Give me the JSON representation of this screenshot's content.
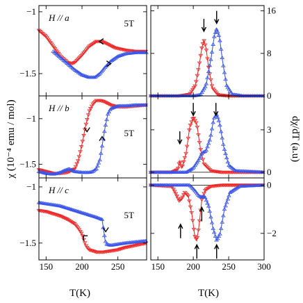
{
  "figure": {
    "left_ylabel": "χ (10⁻⁴ emu / mol)",
    "right_ylabel": "dχ/dT  (a.u)",
    "left_xlabel": "T(K)",
    "right_xlabel": "T(K)"
  },
  "colors": {
    "red": "#ee2a2a",
    "blue": "#3b56e8"
  },
  "chart_data": [
    {
      "type": "line",
      "panel": "chi-a",
      "field_label": "H // a",
      "field_strength": "5T",
      "xlim": [
        140,
        290
      ],
      "ylim": [
        -1.68,
        -0.95
      ],
      "yticks": [
        -1.0,
        -1.5
      ],
      "xticks": [
        150,
        200,
        250
      ],
      "show_xticklabels": false,
      "series": [
        {
          "color": "red",
          "x": [
            140,
            150,
            160,
            170,
            180,
            185,
            190,
            200,
            210,
            220,
            228,
            235,
            245,
            260,
            275,
            290
          ],
          "y": [
            -1.15,
            -1.2,
            -1.28,
            -1.36,
            -1.41,
            -1.42,
            -1.41,
            -1.35,
            -1.28,
            -1.24,
            -1.24,
            -1.26,
            -1.29,
            -1.31,
            -1.32,
            -1.32
          ]
        },
        {
          "color": "blue",
          "x": [
            160,
            170,
            180,
            190,
            200,
            210,
            218,
            225,
            232,
            240,
            250,
            260,
            275,
            290
          ],
          "y": [
            -1.32,
            -1.37,
            -1.42,
            -1.47,
            -1.51,
            -1.53,
            -1.53,
            -1.5,
            -1.45,
            -1.4,
            -1.36,
            -1.34,
            -1.33,
            -1.33
          ]
        }
      ],
      "arrows": [
        {
          "x": 226,
          "y": -1.24,
          "dir": "left"
        },
        {
          "x": 238,
          "y": -1.42,
          "dir": "right"
        }
      ]
    },
    {
      "type": "line",
      "panel": "chi-b",
      "field_label": "H // b",
      "field_strength": "5T",
      "xlim": [
        140,
        290
      ],
      "ylim": [
        -1.65,
        -0.75
      ],
      "yticks": [
        -1.0,
        -1.5
      ],
      "xticks": [
        150,
        200,
        250
      ],
      "show_xticklabels": false,
      "series": [
        {
          "color": "red",
          "x": [
            140,
            150,
            160,
            170,
            180,
            190,
            195,
            200,
            205,
            210,
            215,
            220,
            225,
            230,
            240,
            250,
            260,
            275,
            290
          ],
          "y": [
            -1.56,
            -1.58,
            -1.6,
            -1.6,
            -1.59,
            -1.55,
            -1.45,
            -1.28,
            -1.08,
            -0.92,
            -0.84,
            -0.8,
            -0.8,
            -0.81,
            -0.85,
            -0.87,
            -0.87,
            -0.86,
            -0.85
          ]
        },
        {
          "color": "blue",
          "x": [
            140,
            150,
            160,
            170,
            175,
            182,
            190,
            200,
            210,
            215,
            220,
            225,
            228,
            232,
            236,
            240,
            250,
            260,
            275,
            290
          ],
          "y": [
            -1.58,
            -1.6,
            -1.61,
            -1.59,
            -1.57,
            -1.55,
            -1.58,
            -1.59,
            -1.59,
            -1.58,
            -1.55,
            -1.45,
            -1.3,
            -1.1,
            -0.95,
            -0.89,
            -0.86,
            -0.86,
            -0.85,
            -0.85
          ]
        }
      ],
      "arrows": [
        {
          "x": 207,
          "y": -1.12,
          "dir": "down"
        },
        {
          "x": 228,
          "y": -1.22,
          "dir": "up"
        }
      ]
    },
    {
      "type": "line",
      "panel": "chi-c",
      "field_label": "H // c",
      "field_strength": "5T",
      "xlim": [
        140,
        290
      ],
      "ylim": [
        -1.65,
        -0.92
      ],
      "yticks": [
        -1.0,
        -1.5
      ],
      "xticks": [
        150,
        200,
        250
      ],
      "xticklabels": [
        "150",
        "200",
        "250"
      ],
      "series": [
        {
          "color": "red",
          "x": [
            140,
            150,
            160,
            170,
            180,
            190,
            195,
            200,
            203,
            206,
            210,
            220,
            230,
            240,
            250,
            260,
            275,
            290
          ],
          "y": [
            -1.21,
            -1.22,
            -1.24,
            -1.26,
            -1.29,
            -1.33,
            -1.37,
            -1.42,
            -1.48,
            -1.53,
            -1.56,
            -1.58,
            -1.58,
            -1.57,
            -1.56,
            -1.54,
            -1.52,
            -1.5
          ]
        },
        {
          "color": "blue",
          "x": [
            140,
            150,
            160,
            170,
            180,
            190,
            200,
            210,
            220,
            228,
            230,
            232,
            234,
            240,
            250,
            260,
            275,
            290
          ],
          "y": [
            -1.14,
            -1.15,
            -1.16,
            -1.17,
            -1.19,
            -1.21,
            -1.23,
            -1.25,
            -1.27,
            -1.29,
            -1.38,
            -1.47,
            -1.51,
            -1.52,
            -1.51,
            -1.5,
            -1.49,
            -1.48
          ]
        }
      ],
      "arrows": [
        {
          "x": 204,
          "y": -1.46,
          "dir": "up-left"
        },
        {
          "x": 233,
          "y": -1.38,
          "dir": "down"
        }
      ]
    },
    {
      "type": "line",
      "panel": "dchi-a",
      "ylabel_side": "right",
      "xlim": [
        140,
        300
      ],
      "ylim": [
        0,
        17
      ],
      "yticks": [
        0,
        8,
        16
      ],
      "xticks": [
        150,
        200,
        250,
        300
      ],
      "show_xticklabels": false,
      "series": [
        {
          "color": "red",
          "x": [
            140,
            180,
            195,
            203,
            208,
            212,
            215,
            218,
            222,
            227,
            235,
            250,
            300
          ],
          "y": [
            0,
            0,
            0.3,
            2.0,
            5.5,
            9.0,
            10.5,
            9.0,
            5.0,
            1.5,
            0.2,
            0,
            0
          ]
        },
        {
          "color": "blue",
          "x": [
            140,
            200,
            210,
            218,
            225,
            230,
            233,
            237,
            242,
            247,
            255,
            270,
            300
          ],
          "y": [
            0,
            0,
            0.2,
            2.0,
            7.0,
            11.5,
            12.6,
            11.0,
            6.0,
            2.0,
            0.3,
            0,
            0
          ]
        }
      ],
      "arrows": [
        {
          "x": 215,
          "y": 14.5,
          "dir": "down"
        },
        {
          "x": 233,
          "y": 16.0,
          "dir": "down"
        }
      ]
    },
    {
      "type": "line",
      "panel": "dchi-b",
      "ylabel_side": "right",
      "xlim": [
        140,
        300
      ],
      "ylim": [
        -0.4,
        5.4
      ],
      "yticks": [
        0,
        3
      ],
      "xticks": [
        150,
        200,
        250,
        300
      ],
      "show_xticklabels": false,
      "series": [
        {
          "color": "red",
          "x": [
            140,
            170,
            178,
            181,
            184,
            190,
            195,
            200,
            205,
            210,
            215,
            225,
            240,
            300
          ],
          "y": [
            0,
            0,
            0.2,
            0.8,
            0.3,
            1.4,
            3.2,
            3.9,
            3.4,
            1.7,
            0.6,
            0.1,
            0,
            0
          ]
        },
        {
          "color": "blue",
          "x": [
            140,
            190,
            200,
            208,
            213,
            218,
            224,
            229,
            233,
            237,
            243,
            250,
            260,
            300
          ],
          "y": [
            0,
            0,
            0.3,
            0.9,
            1.4,
            1.5,
            2.4,
            3.8,
            4.1,
            3.5,
            1.8,
            0.5,
            0.1,
            0
          ]
        }
      ],
      "arrows": [
        {
          "x": 181,
          "y": 2.9,
          "dir": "down"
        },
        {
          "x": 200,
          "y": 4.9,
          "dir": "down"
        },
        {
          "x": 232,
          "y": 4.9,
          "dir": "down"
        }
      ]
    },
    {
      "type": "line",
      "panel": "dchi-c",
      "ylabel_side": "right",
      "xlim": [
        140,
        300
      ],
      "ylim": [
        -3.1,
        0.3
      ],
      "yticks": [
        0,
        -2
      ],
      "xticks": [
        150,
        200,
        250,
        300
      ],
      "xticklabels": [
        "150",
        "200",
        "250",
        "300"
      ],
      "series": [
        {
          "color": "red",
          "x": [
            140,
            170,
            176,
            180,
            184,
            188,
            193,
            198,
            202,
            205,
            208,
            212,
            217,
            225,
            240,
            300
          ],
          "y": [
            0,
            -0.05,
            -0.4,
            -0.65,
            -0.55,
            -0.3,
            -0.45,
            -1.2,
            -2.1,
            -2.3,
            -1.7,
            -0.6,
            -0.2,
            -0.05,
            0,
            0
          ]
        },
        {
          "color": "blue",
          "x": [
            140,
            195,
            203,
            208,
            212,
            216,
            222,
            228,
            233,
            238,
            244,
            252,
            265,
            300
          ],
          "y": [
            0,
            0,
            -0.25,
            -0.45,
            -0.5,
            -0.45,
            -0.9,
            -1.8,
            -2.3,
            -2.0,
            -1.0,
            -0.3,
            -0.05,
            0
          ]
        }
      ],
      "arrows": [
        {
          "x": 182,
          "y": -2.2,
          "dir": "up"
        },
        {
          "x": 205,
          "y": -3.05,
          "dir": "up"
        },
        {
          "x": 212,
          "y": -1.5,
          "dir": "up"
        },
        {
          "x": 233,
          "y": -3.05,
          "dir": "up"
        }
      ]
    }
  ]
}
